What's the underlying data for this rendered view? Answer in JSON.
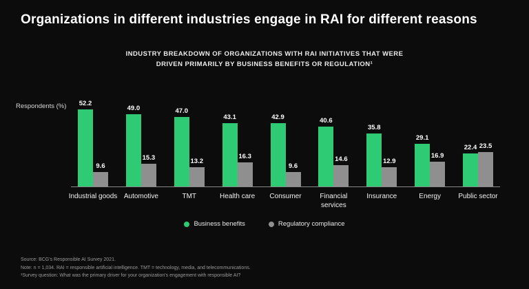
{
  "page": {
    "title": "Organizations in different industries engage in RAI for different reasons"
  },
  "chart_data": {
    "type": "bar",
    "title": "Industry breakdown of organizations with RAI initiatives that were driven primarily by business benefits or regulation",
    "subtitle_lines": [
      "INDUSTRY BREAKDOWN OF ORGANIZATIONS WITH RAI INITIATIVES THAT WERE",
      "DRIVEN PRIMARILY BY BUSINESS BENEFITS OR REGULATION¹"
    ],
    "ylabel": "Respondents (%)",
    "ylim": [
      0,
      55
    ],
    "grid": false,
    "legend_position": "bottom",
    "categories": [
      "Industrial goods",
      "Automotive",
      "TMT",
      "Health care",
      "Consumer",
      "Financial services",
      "Insurance",
      "Energy",
      "Public sector"
    ],
    "series": [
      {
        "name": "Business benefits",
        "color": "#2fca74",
        "values": [
          52.2,
          49.0,
          47.0,
          43.1,
          42.9,
          40.6,
          35.8,
          29.1,
          22.4
        ]
      },
      {
        "name": "Regulatory compliance",
        "color": "#8f8f8f",
        "values": [
          9.6,
          15.3,
          13.2,
          16.3,
          9.6,
          14.6,
          12.9,
          16.9,
          23.5
        ]
      }
    ]
  },
  "footer": {
    "line1": "Source: BCG's Responsible AI Survey 2021.",
    "line2": "Note: n = 1,034. RAI = responsible artificial intelligence. TMT = technology, media, and telecommunications.",
    "line3": "¹Survey question: What was the primary driver for your organization's engagement with responsible AI?"
  }
}
